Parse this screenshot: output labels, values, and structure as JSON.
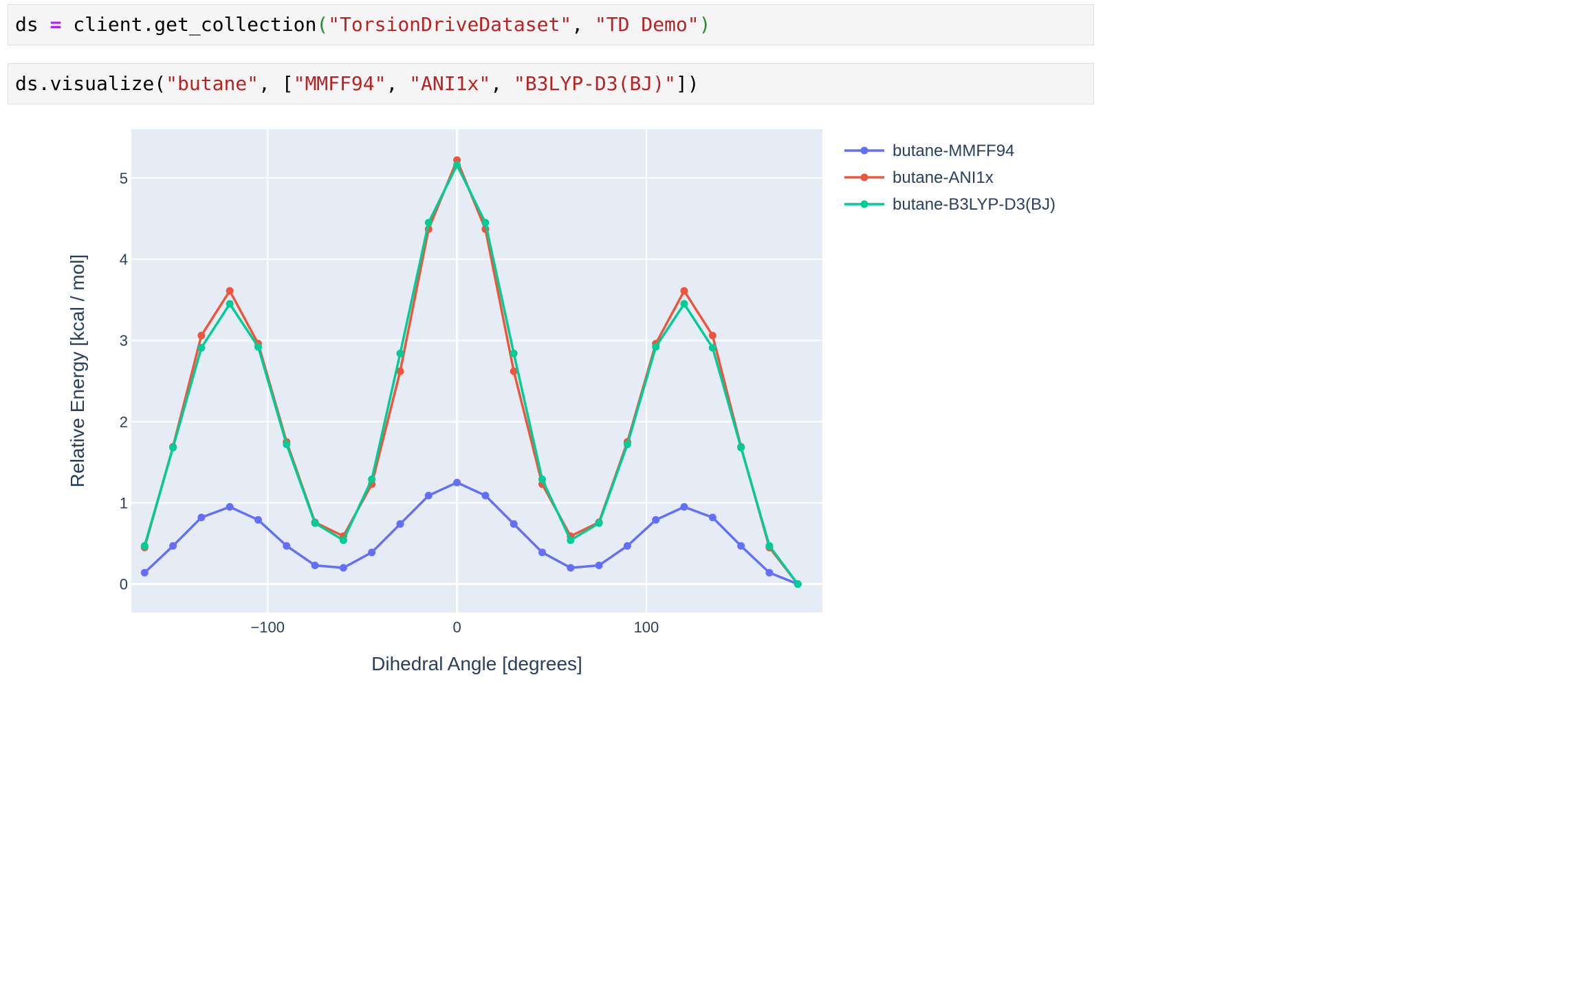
{
  "notebook": {
    "cells": [
      {
        "tokens": [
          {
            "t": "ds",
            "k": "name"
          },
          {
            "t": " ",
            "k": "punct"
          },
          {
            "t": "=",
            "k": "op"
          },
          {
            "t": " ",
            "k": "punct"
          },
          {
            "t": "client.get_collection",
            "k": "name"
          },
          {
            "t": "(",
            "k": "paren"
          },
          {
            "t": "\"TorsionDriveDataset\"",
            "k": "str"
          },
          {
            "t": ", ",
            "k": "punct"
          },
          {
            "t": "\"TD Demo\"",
            "k": "str"
          },
          {
            "t": ")",
            "k": "paren"
          }
        ]
      },
      {
        "tokens": [
          {
            "t": "ds.visualize(",
            "k": "name"
          },
          {
            "t": "\"butane\"",
            "k": "str"
          },
          {
            "t": ", [",
            "k": "punct"
          },
          {
            "t": "\"MMFF94\"",
            "k": "str"
          },
          {
            "t": ", ",
            "k": "punct"
          },
          {
            "t": "\"ANI1x\"",
            "k": "str"
          },
          {
            "t": ", ",
            "k": "punct"
          },
          {
            "t": "\"B3LYP-D3(BJ)\"",
            "k": "str"
          },
          {
            "t": "])",
            "k": "punct"
          }
        ]
      }
    ]
  },
  "chart_data": {
    "type": "line",
    "title": "",
    "xlabel": "Dihedral Angle [degrees]",
    "ylabel": "Relative Energy [kcal / mol]",
    "xlim": [
      -172,
      193
    ],
    "ylim": [
      -0.35,
      5.6
    ],
    "xticks": [
      -100,
      0,
      100
    ],
    "xtick_labels": [
      "−100",
      "0",
      "100"
    ],
    "yticks": [
      0,
      1,
      2,
      3,
      4,
      5
    ],
    "ytick_labels": [
      "0",
      "1",
      "2",
      "3",
      "4",
      "5"
    ],
    "grid": true,
    "legend_placement": "right",
    "colors": {
      "plot_bg": "#e5ecf6",
      "grid": "#ffffff",
      "text": "#2a3f5f"
    },
    "x": [
      -165,
      -150,
      -135,
      -120,
      -105,
      -90,
      -75,
      -60,
      -45,
      -30,
      -15,
      0,
      15,
      30,
      45,
      60,
      75,
      90,
      105,
      120,
      135,
      150,
      165,
      180
    ],
    "series": [
      {
        "name": "butane-MMFF94",
        "color": "#636efa",
        "values": [
          0.14,
          0.47,
          0.82,
          0.95,
          0.79,
          0.47,
          0.23,
          0.2,
          0.39,
          0.74,
          1.09,
          1.25,
          1.09,
          0.74,
          0.39,
          0.2,
          0.23,
          0.47,
          0.79,
          0.95,
          0.82,
          0.47,
          0.14,
          0.0
        ]
      },
      {
        "name": "butane-ANI1x",
        "color": "#ef553b",
        "values": [
          0.45,
          1.69,
          3.06,
          3.61,
          2.96,
          1.75,
          0.76,
          0.59,
          1.23,
          2.62,
          4.37,
          5.22,
          4.37,
          2.62,
          1.23,
          0.59,
          0.76,
          1.75,
          2.96,
          3.61,
          3.06,
          1.69,
          0.45,
          0.0
        ]
      },
      {
        "name": "butane-B3LYP-D3(BJ)",
        "color": "#00cc96",
        "values": [
          0.47,
          1.68,
          2.91,
          3.45,
          2.92,
          1.72,
          0.75,
          0.54,
          1.29,
          2.84,
          4.45,
          5.16,
          4.45,
          2.84,
          1.29,
          0.54,
          0.75,
          1.72,
          2.92,
          3.45,
          2.91,
          1.68,
          0.47,
          0.0
        ]
      }
    ]
  }
}
